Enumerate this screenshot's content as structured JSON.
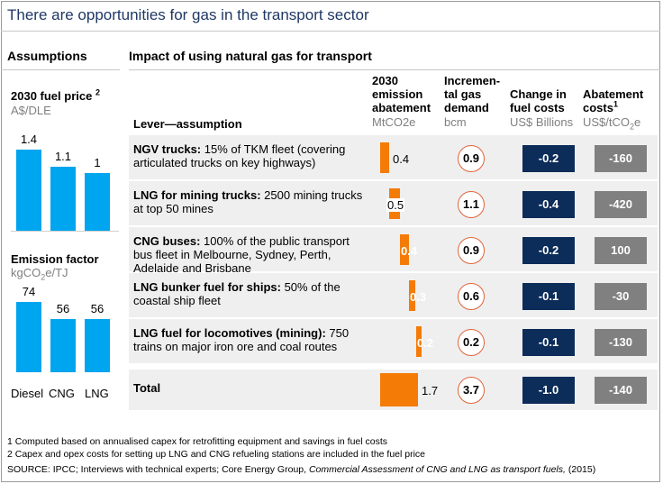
{
  "title": "There are opportunities for gas in the transport sector",
  "assumptions": {
    "heading": "Assumptions",
    "fuel_price": {
      "title": "2030 fuel price",
      "footnote_ref": "2",
      "unit": "A$/DLE"
    },
    "emission_factor": {
      "title": "Emission factor",
      "unit_base": "kgCO",
      "unit_sub": "2",
      "unit_tail": "e/TJ"
    },
    "categories": [
      "Diesel",
      "CNG",
      "LNG"
    ]
  },
  "impact": {
    "heading": "Impact of using natural gas for transport",
    "lever_header": "Lever—assumption",
    "columns": {
      "abatement": {
        "line1": "2030",
        "line2": "emission",
        "line3": "abatement",
        "unit": "MtCO2e"
      },
      "demand": {
        "line1": "Incremen-",
        "line2": "tal gas",
        "line3": "demand",
        "unit": "bcm"
      },
      "fuel_costs": {
        "line1": "Change in",
        "line2": "fuel costs",
        "unit": "US$ Billions"
      },
      "abatement_costs": {
        "line1": "Abatement",
        "line2": "costs",
        "footnote_ref": "1",
        "unit_base": "US$/tCO",
        "unit_sub": "2",
        "unit_tail": "e"
      }
    },
    "rows": [
      {
        "lever_bold": "NGV trucks:",
        "lever_rest": " 15% of TKM fleet (covering articulated trucks on key highways)",
        "abatement": "0.4",
        "demand": "0.9",
        "fuel_cost": "-0.2",
        "abatement_cost": "-160"
      },
      {
        "lever_bold": "LNG for mining trucks:",
        "lever_rest": " 2500 mining trucks at top 50 mines",
        "abatement": "0.5",
        "demand": "1.1",
        "fuel_cost": "-0.4",
        "abatement_cost": "-420"
      },
      {
        "lever_bold": "CNG buses:",
        "lever_rest": " 100% of the public transport bus fleet in Melbourne, Sydney, Perth, Adelaide and Brisbane",
        "abatement": "0.4",
        "demand": "0.9",
        "fuel_cost": "-0.2",
        "abatement_cost": "100"
      },
      {
        "lever_bold": "LNG bunker fuel for ships:",
        "lever_rest": " 50% of the coastal ship fleet",
        "abatement": "0.3",
        "demand": "0.6",
        "fuel_cost": "-0.1",
        "abatement_cost": "-30"
      },
      {
        "lever_bold": "LNG fuel for locomotives (mining):",
        "lever_rest": " 750 trains on major iron ore and coal routes",
        "abatement": "0.2",
        "demand": "0.2",
        "fuel_cost": "-0.1",
        "abatement_cost": "-130"
      }
    ],
    "total": {
      "label": "Total",
      "abatement": "1.7",
      "demand": "3.7",
      "fuel_cost": "-1.0",
      "abatement_cost": "-140"
    }
  },
  "footnotes": {
    "note1": "1 Computed based on annualised capex for retrofitting equipment and savings in fuel costs",
    "note2": "2 Capex and opex costs for setting up LNG and CNG refueling stations are included in the fuel price",
    "source_prefix": "SOURCE: IPCC; Interviews with technical experts; Core Energy Group, ",
    "source_italic": "Commercial Assessment of CNG and LNG as transport fuels,",
    "source_suffix": " (2015)"
  },
  "colors": {
    "title": "#1f3864",
    "bar_blue": "#00a5ef",
    "bar_orange": "#f47b06",
    "navy": "#0c2c59",
    "grey": "#808080",
    "circle_border": "#e2643a"
  },
  "chart_data": [
    {
      "type": "bar",
      "title": "2030 fuel price",
      "ylabel": "A$/DLE",
      "categories": [
        "Diesel",
        "CNG",
        "LNG"
      ],
      "values": [
        1.4,
        1.1,
        1.0
      ],
      "ylim": [
        0,
        1.6
      ]
    },
    {
      "type": "bar",
      "title": "Emission factor",
      "ylabel": "kgCO2e/TJ",
      "categories": [
        "Diesel",
        "CNG",
        "LNG"
      ],
      "values": [
        74,
        56,
        56
      ],
      "ylim": [
        0,
        80
      ]
    },
    {
      "type": "bar",
      "title": "2030 emission abatement",
      "ylabel": "MtCO2e",
      "orientation": "waterfall",
      "categories": [
        "NGV trucks",
        "LNG for mining trucks",
        "CNG buses",
        "LNG bunker fuel for ships",
        "LNG fuel for locomotives (mining)",
        "Total"
      ],
      "values": [
        0.4,
        0.5,
        0.4,
        0.3,
        0.2,
        1.7
      ]
    }
  ]
}
